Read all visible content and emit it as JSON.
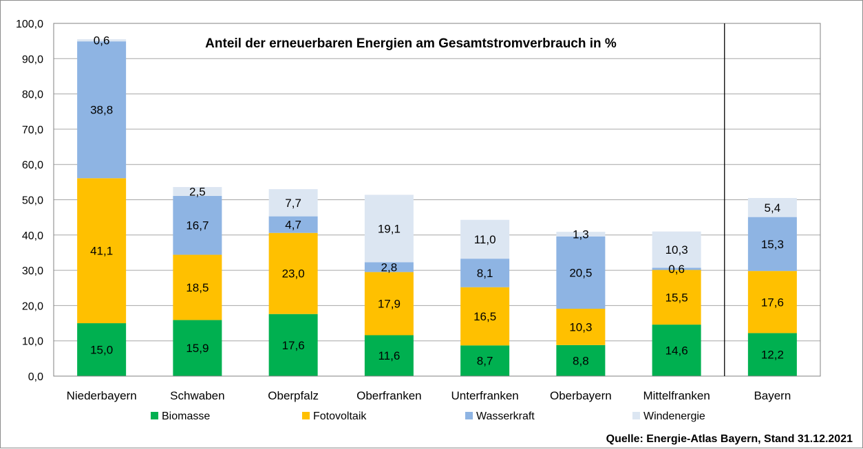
{
  "chart_data": {
    "type": "bar",
    "stacked": true,
    "title": "Anteil der erneuerbaren Energien am Gesamtstromverbrauch in %",
    "source": "Quelle: Energie-Atlas Bayern, Stand 31.12.2021",
    "categories": [
      "Niederbayern",
      "Schwaben",
      "Oberpfalz",
      "Oberfranken",
      "Unterfranken",
      "Oberbayern",
      "Mittelfranken",
      "Bayern"
    ],
    "series": [
      {
        "name": "Biomasse",
        "color": "#00b050",
        "values": [
          15.0,
          15.9,
          17.6,
          11.6,
          8.7,
          8.8,
          14.6,
          12.2
        ],
        "labels": [
          "15,0",
          "15,9",
          "17,6",
          "11,6",
          "8,7",
          "8,8",
          "14,6",
          "12,2"
        ]
      },
      {
        "name": "Fotovoltaik",
        "color": "#ffc000",
        "values": [
          41.1,
          18.5,
          23.0,
          17.9,
          16.5,
          10.3,
          15.5,
          17.6
        ],
        "labels": [
          "41,1",
          "18,5",
          "23,0",
          "17,9",
          "16,5",
          "10,3",
          "15,5",
          "17,6"
        ]
      },
      {
        "name": "Wasserkraft",
        "color": "#8eb4e3",
        "values": [
          38.8,
          16.7,
          4.7,
          2.8,
          8.1,
          20.5,
          0.6,
          15.3
        ],
        "labels": [
          "38,8",
          "16,7",
          "4,7",
          "2,8",
          "8,1",
          "20,5",
          "0,6",
          "15,3"
        ]
      },
      {
        "name": "Windenergie",
        "color": "#dce6f2",
        "values": [
          0.6,
          2.5,
          7.7,
          19.1,
          11.0,
          1.3,
          10.3,
          5.4
        ],
        "labels": [
          "0,6",
          "2,5",
          "7,7",
          "19,1",
          "11,0",
          "1,3",
          "10,3",
          "5,4"
        ]
      }
    ],
    "ylim": [
      0,
      100
    ],
    "yticks": [
      "0,0",
      "10,0",
      "20,0",
      "30,0",
      "40,0",
      "50,0",
      "60,0",
      "70,0",
      "80,0",
      "90,0",
      "100,0"
    ],
    "grid": true,
    "legend": "bottom",
    "separator_before": "Bayern"
  }
}
